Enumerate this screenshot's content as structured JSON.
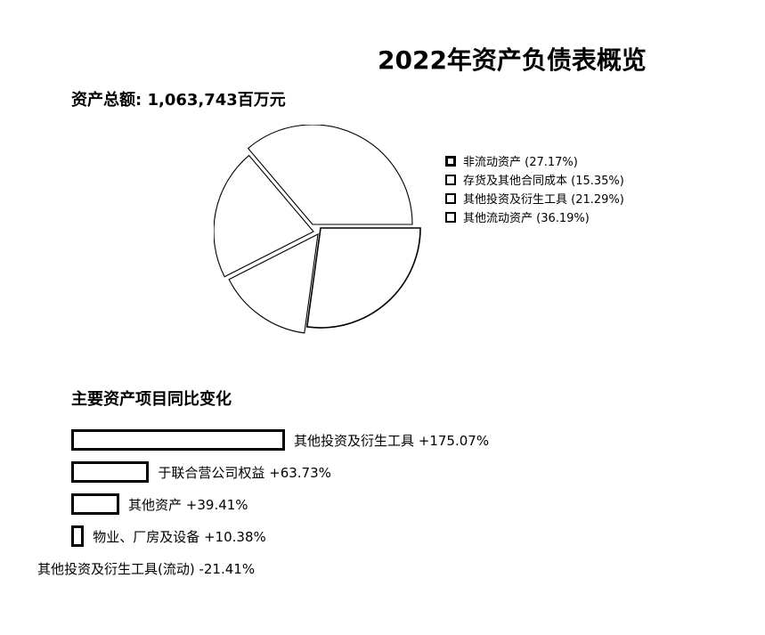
{
  "header": {
    "title": "2022年资产负债表概览",
    "total_assets": "资产总额: 1,063,743百万元"
  },
  "chart_data": [
    {
      "type": "pie",
      "title": "2022年资产负债表概览",
      "subtitle": "资产总额: 1,063,743百万元",
      "slices": [
        {
          "label": "非流动资产",
          "value": 27.17
        },
        {
          "label": "存货及其他合同成本",
          "value": 15.35
        },
        {
          "label": "其他投资及衍生工具",
          "value": 21.29
        },
        {
          "label": "其他流动资产",
          "value": 36.19
        }
      ],
      "legend_labels": [
        "非流动资产 (27.17%)",
        "存货及其他合同成本 (15.35%)",
        "其他投资及衍生工具 (21.29%)",
        "其他流动资产 (36.19%)"
      ],
      "legend_position": "right",
      "colors": [
        "#ffffff",
        "#ffffff",
        "#ffffff",
        "#ffffff"
      ]
    },
    {
      "type": "bar",
      "orientation": "horizontal",
      "title": "主要资产项目同比变化",
      "categories": [
        "其他投资及衍生工具",
        "于联合营公司权益",
        "其他资产",
        "物业、厂房及设备",
        "其他投资及衍生工具(流动)"
      ],
      "values": [
        175.07,
        63.73,
        39.41,
        10.38,
        -21.41
      ],
      "labels": [
        "其他投资及衍生工具 +175.07%",
        "于联合营公司权益 +63.73%",
        "其他资产 +39.41%",
        "物业、厂房及设备 +10.38%",
        "其他投资及衍生工具(流动) -21.41%"
      ],
      "unit": "%"
    }
  ]
}
